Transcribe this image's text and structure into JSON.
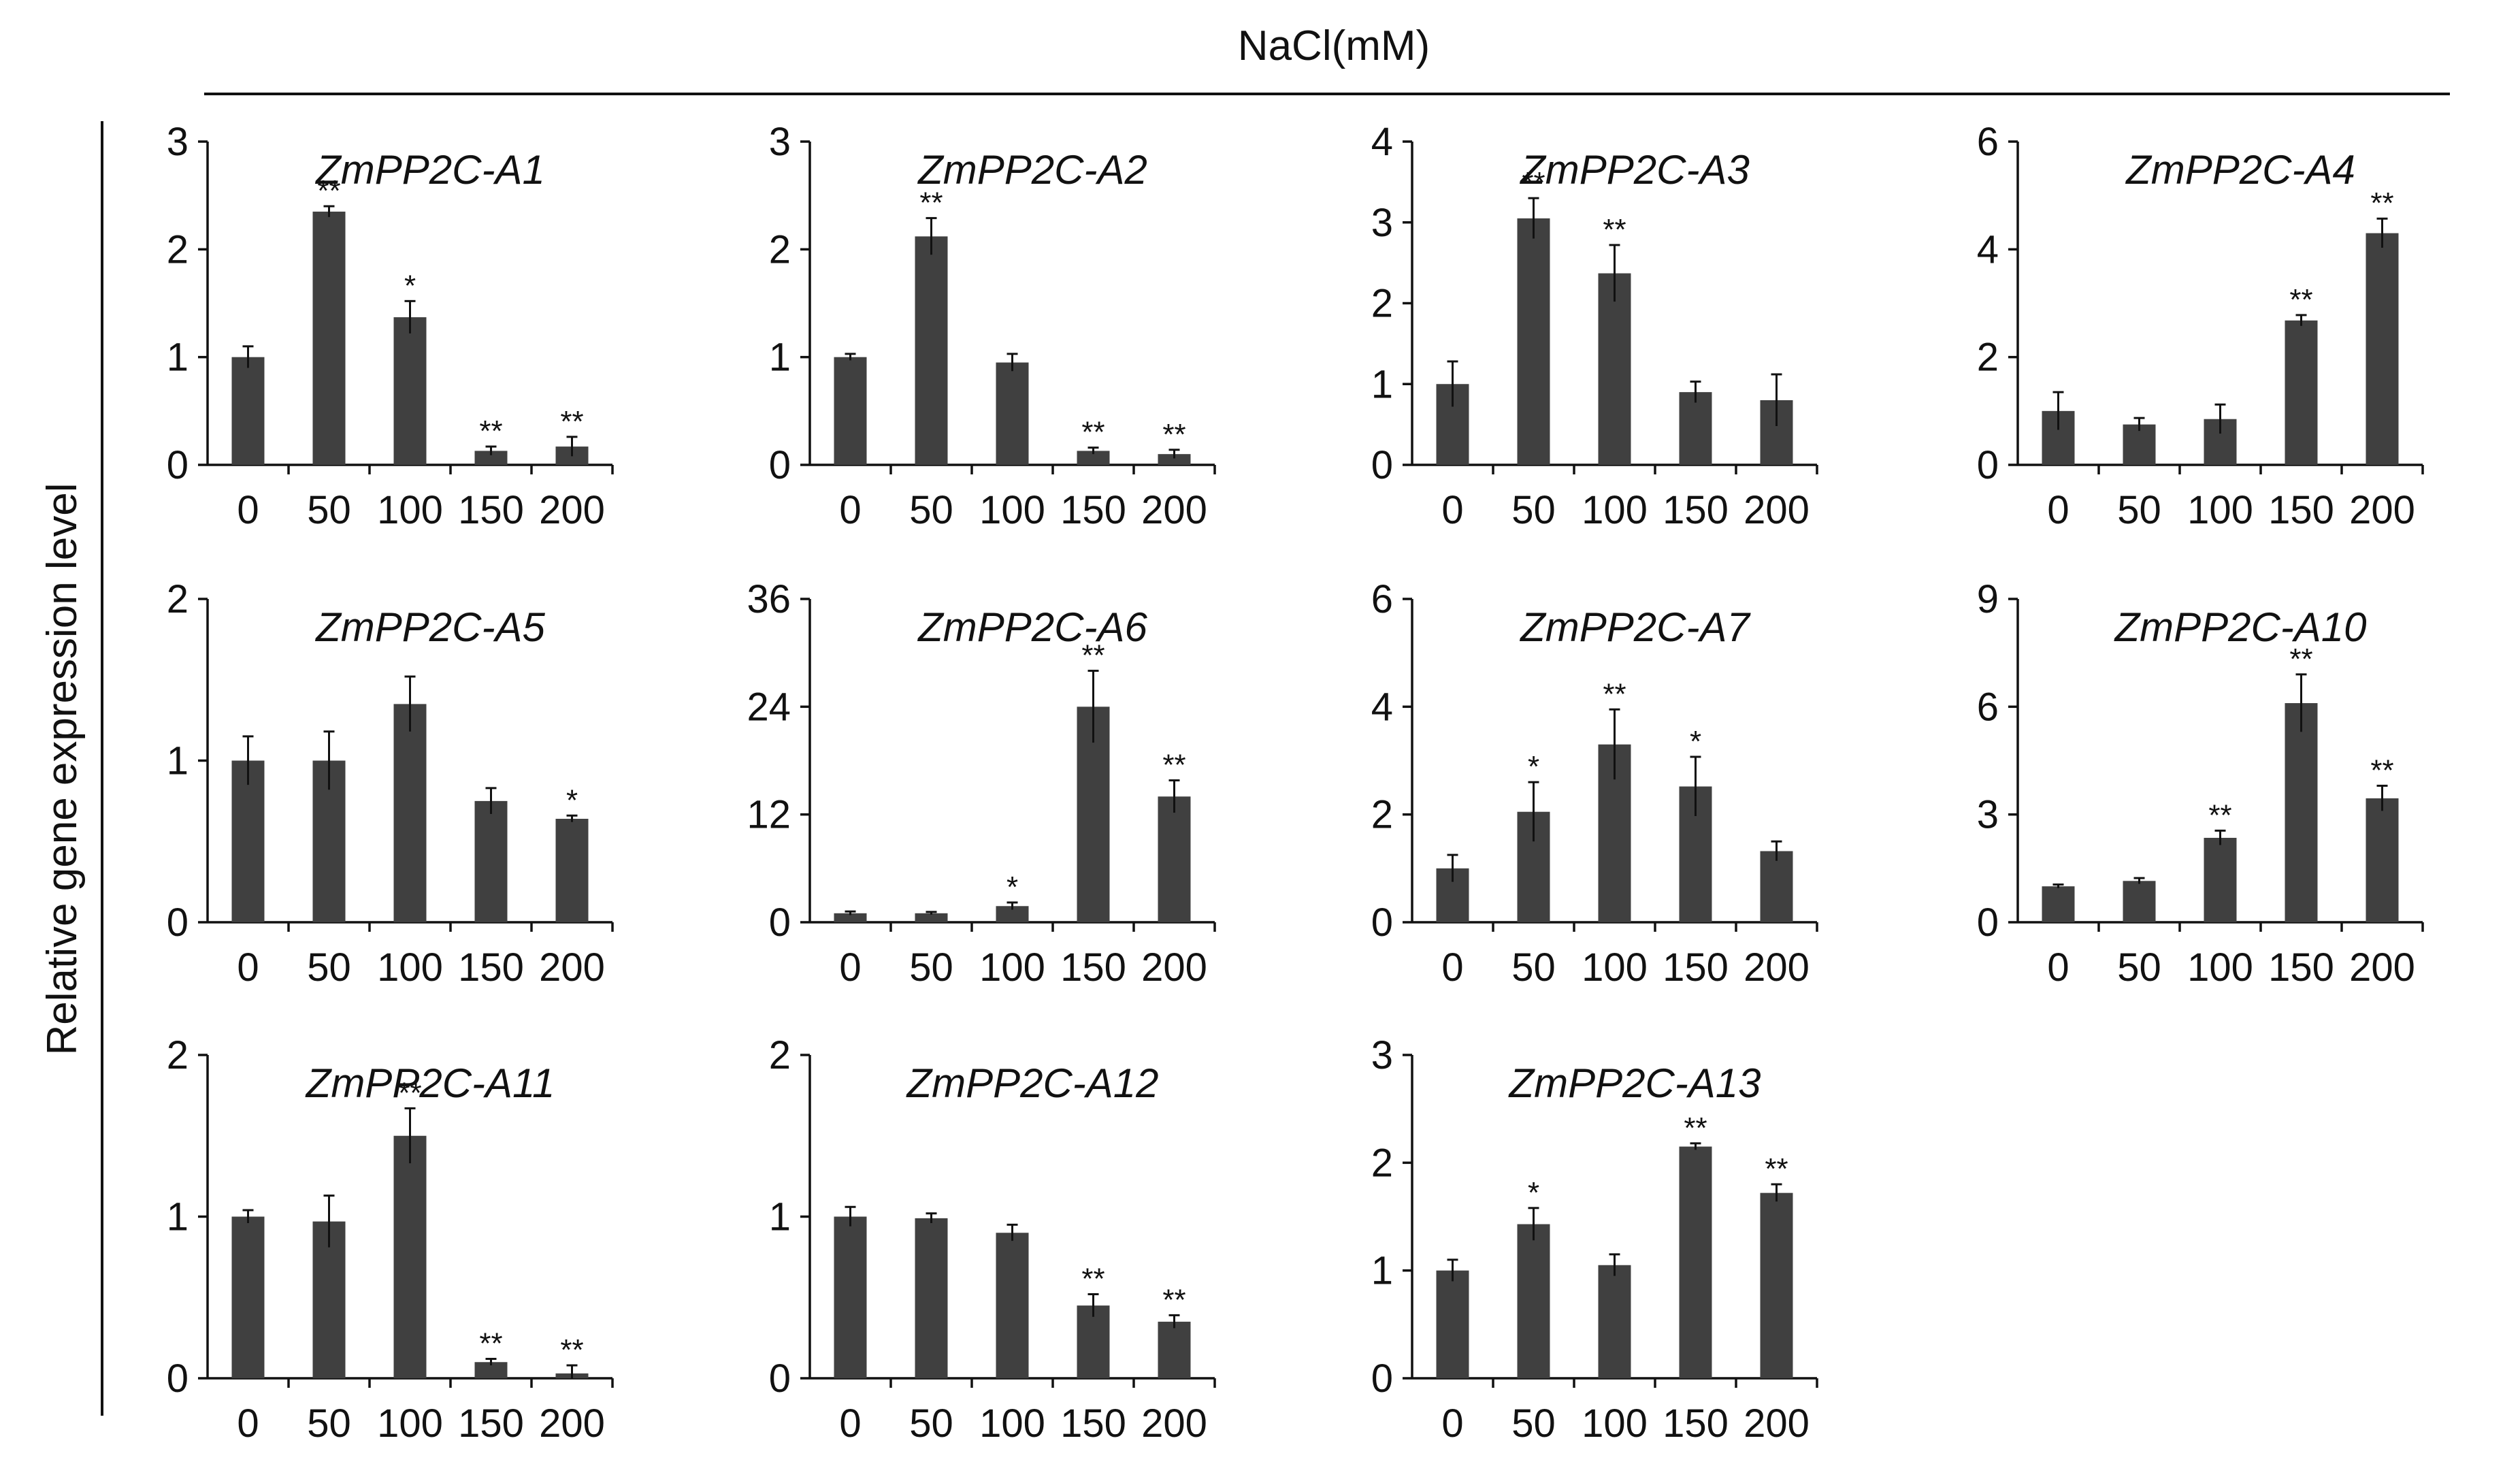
{
  "figure": {
    "header": "NaCl(mM)",
    "ylabel": "Relative gene expression level",
    "bar_color": "#404040"
  },
  "chart_data": [
    {
      "type": "bar",
      "title": "ZmPP2C-A1",
      "categories": [
        "0",
        "50",
        "100",
        "150",
        "200"
      ],
      "values": [
        1.0,
        2.35,
        1.37,
        0.13,
        0.17
      ],
      "errors": [
        0.1,
        0.05,
        0.15,
        0.04,
        0.09
      ],
      "significance": [
        "",
        "**",
        "*",
        "**",
        "**"
      ],
      "ylim": [
        0,
        3
      ],
      "yticks": [
        0,
        1,
        2,
        3
      ]
    },
    {
      "type": "bar",
      "title": "ZmPP2C-A2",
      "categories": [
        "0",
        "50",
        "100",
        "150",
        "200"
      ],
      "values": [
        1.0,
        2.12,
        0.95,
        0.13,
        0.1
      ],
      "errors": [
        0.03,
        0.17,
        0.08,
        0.03,
        0.04
      ],
      "significance": [
        "",
        "**",
        "",
        "**",
        "**"
      ],
      "ylim": [
        0,
        3
      ],
      "yticks": [
        0,
        1,
        2,
        3
      ]
    },
    {
      "type": "bar",
      "title": "ZmPP2C-A3",
      "categories": [
        "0",
        "50",
        "100",
        "150",
        "200"
      ],
      "values": [
        1.0,
        3.05,
        2.37,
        0.9,
        0.8
      ],
      "errors": [
        0.28,
        0.25,
        0.35,
        0.13,
        0.32
      ],
      "significance": [
        "",
        "**",
        "**",
        "",
        ""
      ],
      "ylim": [
        0,
        4
      ],
      "yticks": [
        0,
        1,
        2,
        3,
        4
      ]
    },
    {
      "type": "bar",
      "title": "ZmPP2C-A4",
      "categories": [
        "0",
        "50",
        "100",
        "150",
        "200"
      ],
      "values": [
        1.0,
        0.75,
        0.85,
        2.68,
        4.3
      ],
      "errors": [
        0.35,
        0.12,
        0.27,
        0.1,
        0.27
      ],
      "significance": [
        "",
        "",
        "",
        "**",
        "**"
      ],
      "ylim": [
        0,
        6
      ],
      "yticks": [
        0,
        2,
        4,
        6
      ]
    },
    {
      "type": "bar",
      "title": "ZmPP2C-A5",
      "categories": [
        "0",
        "50",
        "100",
        "150",
        "200"
      ],
      "values": [
        1.0,
        1.0,
        1.35,
        0.75,
        0.64
      ],
      "errors": [
        0.15,
        0.18,
        0.17,
        0.08,
        0.02
      ],
      "significance": [
        "",
        "",
        "",
        "",
        "*"
      ],
      "ylim": [
        0,
        2
      ],
      "yticks": [
        0,
        1,
        2
      ]
    },
    {
      "type": "bar",
      "title": "ZmPP2C-A6",
      "categories": [
        "0",
        "50",
        "100",
        "150",
        "200"
      ],
      "values": [
        1.0,
        1.0,
        1.8,
        24.0,
        14.0
      ],
      "errors": [
        0.2,
        0.15,
        0.4,
        4.0,
        1.8
      ],
      "significance": [
        "",
        "",
        "*",
        "**",
        "**"
      ],
      "ylim": [
        0,
        36
      ],
      "yticks": [
        0,
        12,
        24,
        36
      ]
    },
    {
      "type": "bar",
      "title": "ZmPP2C-A7",
      "categories": [
        "0",
        "50",
        "100",
        "150",
        "200"
      ],
      "values": [
        1.0,
        2.05,
        3.3,
        2.52,
        1.32
      ],
      "errors": [
        0.25,
        0.55,
        0.65,
        0.55,
        0.18
      ],
      "significance": [
        "",
        "*",
        "**",
        "*",
        ""
      ],
      "ylim": [
        0,
        6
      ],
      "yticks": [
        0,
        2,
        4,
        6
      ]
    },
    {
      "type": "bar",
      "title": "ZmPP2C-A10",
      "categories": [
        "0",
        "50",
        "100",
        "150",
        "200"
      ],
      "values": [
        1.0,
        1.15,
        2.35,
        6.1,
        3.45
      ],
      "errors": [
        0.05,
        0.08,
        0.2,
        0.8,
        0.35
      ],
      "significance": [
        "",
        "",
        "**",
        "**",
        "**"
      ],
      "ylim": [
        0,
        9
      ],
      "yticks": [
        0,
        3,
        6,
        9
      ]
    },
    {
      "type": "bar",
      "title": "ZmPP2C-A11",
      "categories": [
        "0",
        "50",
        "100",
        "150",
        "200"
      ],
      "values": [
        1.0,
        0.97,
        1.5,
        0.1,
        0.03
      ],
      "errors": [
        0.04,
        0.16,
        0.17,
        0.02,
        0.05
      ],
      "significance": [
        "",
        "",
        "**",
        "**",
        "**"
      ],
      "ylim": [
        0,
        2
      ],
      "yticks": [
        0,
        1,
        2
      ]
    },
    {
      "type": "bar",
      "title": "ZmPP2C-A12",
      "categories": [
        "0",
        "50",
        "100",
        "150",
        "200"
      ],
      "values": [
        1.0,
        0.99,
        0.9,
        0.45,
        0.35
      ],
      "errors": [
        0.06,
        0.03,
        0.05,
        0.07,
        0.04
      ],
      "significance": [
        "",
        "",
        "",
        "**",
        "**"
      ],
      "ylim": [
        0,
        2
      ],
      "yticks": [
        0,
        1,
        2
      ]
    },
    {
      "type": "bar",
      "title": "ZmPP2C-A13",
      "categories": [
        "0",
        "50",
        "100",
        "150",
        "200"
      ],
      "values": [
        1.0,
        1.43,
        1.05,
        2.15,
        1.72
      ],
      "errors": [
        0.1,
        0.15,
        0.1,
        0.03,
        0.08
      ],
      "significance": [
        "",
        "*",
        "",
        "**",
        "**"
      ],
      "ylim": [
        0,
        3
      ],
      "yticks": [
        0,
        1,
        2,
        3
      ]
    }
  ]
}
